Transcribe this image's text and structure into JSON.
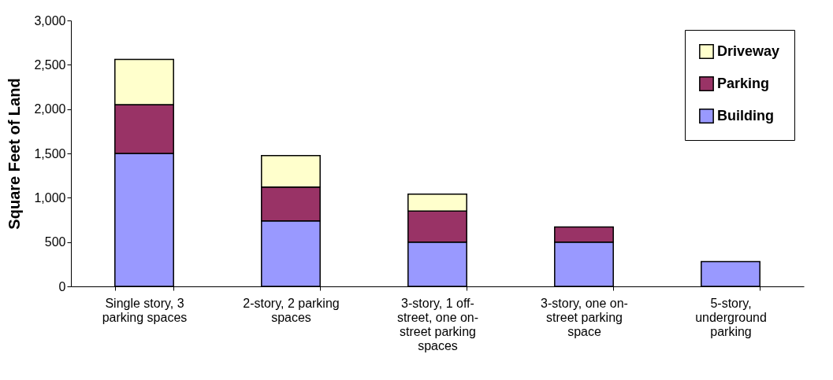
{
  "chart_data": {
    "type": "bar",
    "stacked": true,
    "ylabel": "Square Feet of Land",
    "categories": [
      "Single story, 3 parking spaces",
      "2-story, 2 parking spaces",
      "3-story, 1 off-street, one on-street parking spaces",
      "3-story, one on-street parking space",
      "5-story, underground parking"
    ],
    "series": [
      {
        "name": "Building",
        "color": "#9999ff",
        "values": [
          1500,
          740,
          500,
          500,
          280
        ]
      },
      {
        "name": "Parking",
        "color": "#993366",
        "values": [
          550,
          380,
          350,
          170,
          null
        ]
      },
      {
        "name": "Driveway",
        "color": "#ffffcc",
        "values": [
          510,
          355,
          190,
          null,
          null
        ]
      }
    ],
    "ylim": [
      0,
      3000
    ],
    "yticks": [
      0,
      500,
      {
        "value": 1000,
        "label": "1,000"
      },
      {
        "value": 1500,
        "label": "1,500"
      },
      {
        "value": 2000,
        "label": "2,000"
      },
      {
        "value": 2500,
        "label": "2,500"
      },
      {
        "value": 3000,
        "label": "3,000"
      }
    ],
    "grid": false,
    "legend": "top right"
  }
}
